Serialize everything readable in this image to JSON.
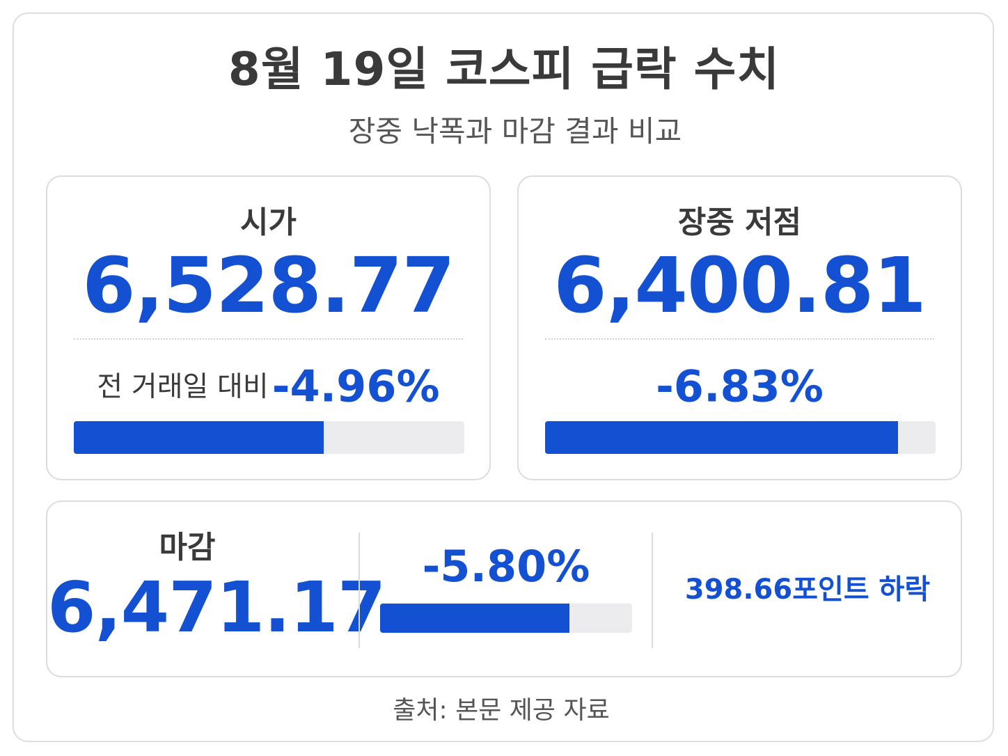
{
  "header": {
    "title": "8월 19일 코스피 급락 수치",
    "subtitle": "장중 낙폭과 마감 결과 비교"
  },
  "open_card": {
    "label": "시가",
    "value": "6,528.77",
    "change_label": "전 거래일 대비",
    "change_pct": "-4.96%",
    "bar_fill_fraction": 0.64
  },
  "low_card": {
    "label": "장중 저점",
    "value": "6,400.81",
    "change_pct": "-6.83%",
    "bar_fill_fraction": 0.904
  },
  "close_card": {
    "label": "마감",
    "value": "6,471.17",
    "change_pct": "-5.80%",
    "bar_fill_fraction": 0.75,
    "points_text": "398.66포인트 하락"
  },
  "footer": {
    "source": "출처: 본문 제공 자료"
  },
  "colors": {
    "accent": "#1450d2",
    "text": "#3a3a3a",
    "muted": "#555555",
    "bar_track": "#ececee",
    "border": "#dcdcdc"
  }
}
